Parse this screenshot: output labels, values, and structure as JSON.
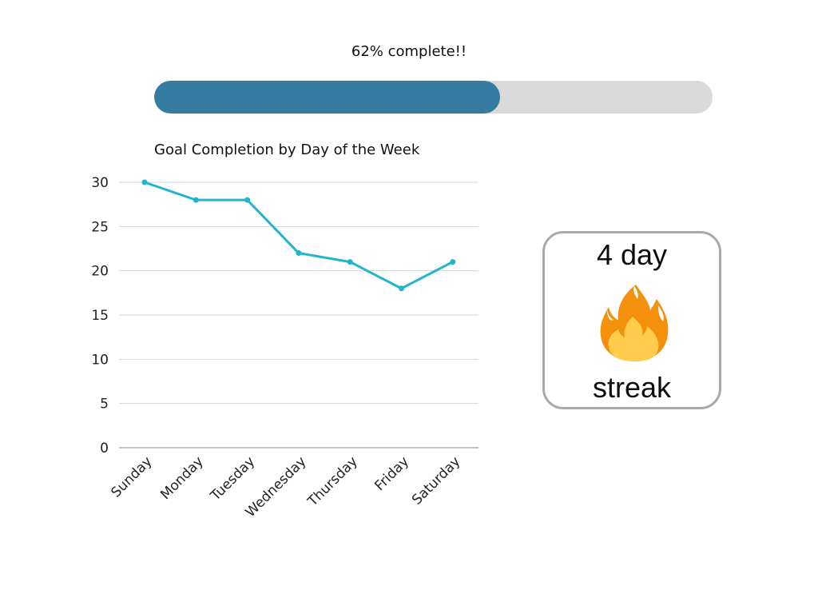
{
  "progress": {
    "label": "62% complete!!",
    "fraction": 0.62,
    "fill_color": "#357ca3",
    "track_color": "#d9d9d9"
  },
  "chart_data": {
    "type": "line",
    "title": "Goal Completion by Day of the Week",
    "xlabel": "",
    "ylabel": "",
    "categories": [
      "Sunday",
      "Monday",
      "Tuesday",
      "Wednesday",
      "Thursday",
      "Friday",
      "Saturday"
    ],
    "series": [
      {
        "values": [
          30,
          28,
          28,
          22,
          21,
          18,
          21
        ],
        "color": "#21b5cc"
      }
    ],
    "ylim": [
      0,
      30
    ],
    "yticks": [
      "0",
      "5",
      "10",
      "15",
      "20",
      "25",
      "30"
    ],
    "grid": true,
    "legend": "none"
  },
  "streak": {
    "count_text": "4 day",
    "icon": "fire-icon",
    "label": "streak"
  }
}
